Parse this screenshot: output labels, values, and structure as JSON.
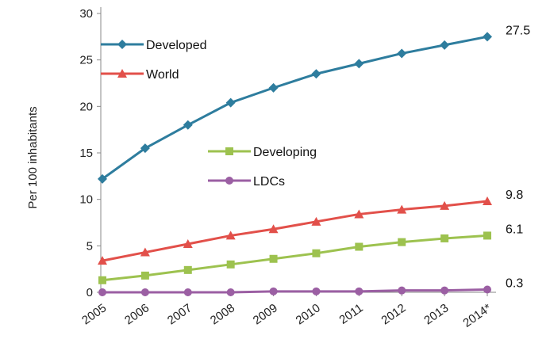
{
  "chart_data": {
    "type": "line",
    "ylabel": "Per 100 inhabitants",
    "ylim": [
      0,
      30
    ],
    "yticks": [
      0,
      5,
      10,
      15,
      20,
      25,
      30
    ],
    "categories": [
      "2005",
      "2006",
      "2007",
      "2008",
      "2009",
      "2010",
      "2011",
      "2012",
      "2013",
      "2014*"
    ],
    "grid": false,
    "series": [
      {
        "name": "Developed",
        "color": "#2e7d9e",
        "marker": "diamond",
        "values": [
          12.2,
          15.5,
          18.0,
          20.4,
          22.0,
          23.5,
          24.6,
          25.7,
          26.6,
          27.5
        ],
        "end_label": "27.5"
      },
      {
        "name": "World",
        "color": "#e2504a",
        "marker": "triangle",
        "values": [
          3.4,
          4.3,
          5.2,
          6.1,
          6.8,
          7.6,
          8.4,
          8.9,
          9.3,
          9.8
        ],
        "end_label": "9.8"
      },
      {
        "name": "Developing",
        "color": "#9dc24f",
        "marker": "square",
        "values": [
          1.3,
          1.8,
          2.4,
          3.0,
          3.6,
          4.2,
          4.9,
          5.4,
          5.8,
          6.1
        ],
        "end_label": "6.1"
      },
      {
        "name": "LDCs",
        "color": "#9b5fa3",
        "marker": "circle",
        "values": [
          0.0,
          0.0,
          0.0,
          0.0,
          0.1,
          0.1,
          0.1,
          0.2,
          0.2,
          0.3
        ],
        "end_label": "0.3"
      }
    ],
    "legend_groups": [
      {
        "placement": "top-left",
        "items": [
          "Developed",
          "World"
        ]
      },
      {
        "placement": "center",
        "items": [
          "Developing",
          "LDCs"
        ]
      }
    ]
  }
}
